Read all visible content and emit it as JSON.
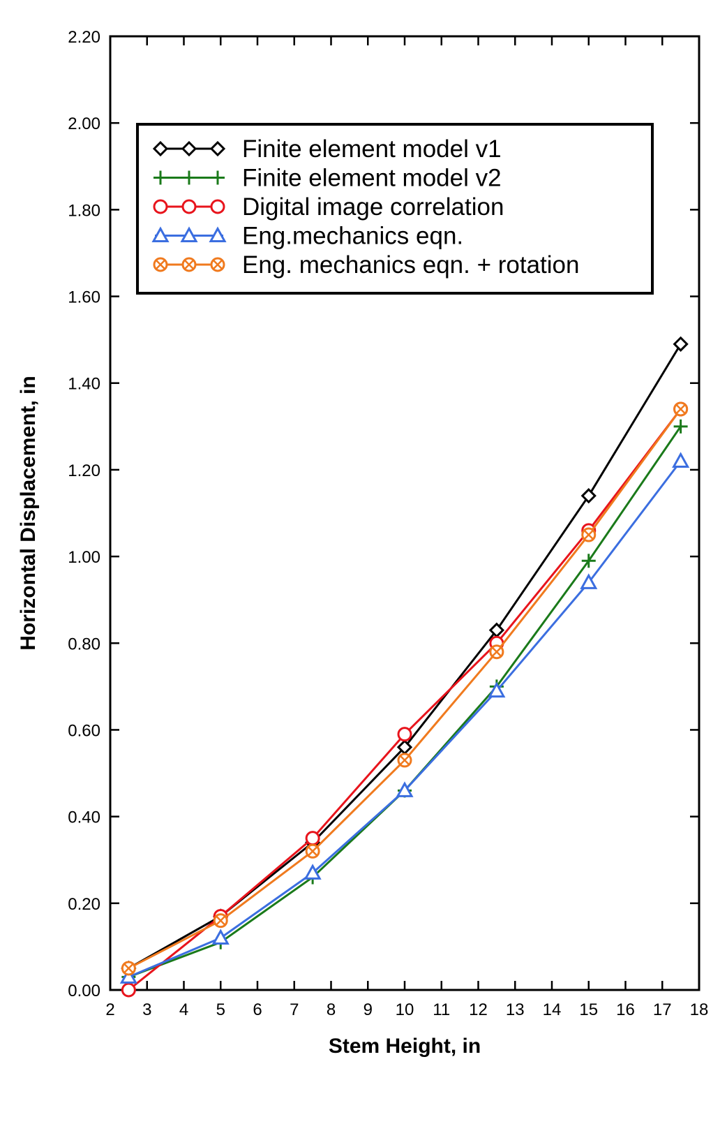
{
  "chart_data": {
    "type": "line",
    "title": "",
    "xlabel": "Stem Height, in",
    "ylabel": "Horizontal Displacement, in",
    "xlim": [
      2,
      18
    ],
    "ylim": [
      0.0,
      2.2
    ],
    "xticks": [
      2,
      3,
      4,
      5,
      6,
      7,
      8,
      9,
      10,
      11,
      12,
      13,
      14,
      15,
      16,
      17,
      18
    ],
    "xtick_labels": [
      "2",
      "3",
      "4",
      "5",
      "6",
      "7",
      "8",
      "9",
      "10",
      "11",
      "12",
      "13",
      "14",
      "15",
      "16",
      "17",
      "18"
    ],
    "yticks": [
      0.0,
      0.2,
      0.4,
      0.6,
      0.8,
      1.0,
      1.2,
      1.4,
      1.6,
      1.8,
      2.0,
      2.2
    ],
    "ytick_labels": [
      "0.00",
      "0.20",
      "0.40",
      "0.60",
      "0.80",
      "1.00",
      "1.20",
      "1.40",
      "1.60",
      "1.80",
      "2.00",
      "2.20"
    ],
    "grid": false,
    "legend_position": "top-left",
    "x": [
      2.5,
      5,
      7.5,
      10,
      12.5,
      15,
      17.5
    ],
    "series": [
      {
        "name": "Finite element model v1",
        "color": "#000000",
        "marker": "diamond",
        "values": [
          0.05,
          0.17,
          0.34,
          0.56,
          0.83,
          1.14,
          1.49
        ]
      },
      {
        "name": "Finite element model v2",
        "color": "#1a7a1a",
        "marker": "plus",
        "values": [
          0.03,
          0.11,
          0.26,
          0.46,
          0.7,
          0.99,
          1.3
        ]
      },
      {
        "name": "Digital image correlation",
        "color": "#e8141c",
        "marker": "circle",
        "values": [
          0.0,
          0.17,
          0.35,
          0.59,
          0.8,
          1.06,
          1.34
        ]
      },
      {
        "name": "Eng.mechanics eqn.",
        "color": "#3b6ee0",
        "marker": "triangle",
        "values": [
          0.03,
          0.12,
          0.27,
          0.46,
          0.69,
          0.94,
          1.22
        ]
      },
      {
        "name": "Eng. mechanics eqn. + rotation",
        "color": "#f07a1e",
        "marker": "circle-x",
        "values": [
          0.05,
          0.16,
          0.32,
          0.53,
          0.78,
          1.05,
          1.34
        ]
      }
    ]
  }
}
